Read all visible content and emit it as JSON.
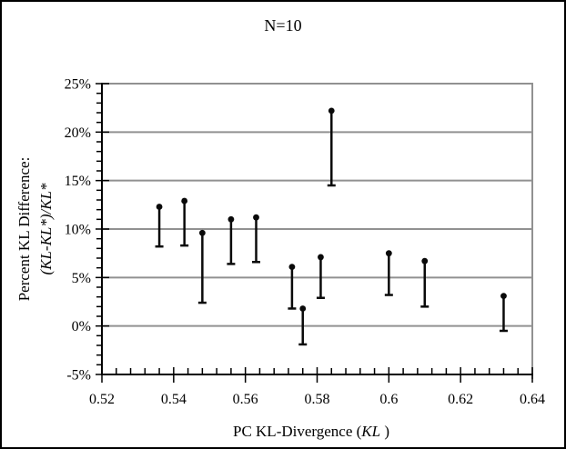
{
  "chart_data": {
    "type": "scatter",
    "title": "N=10",
    "xlabel_prefix": "PC KL-Divergence (",
    "xlabel_italic": "KL",
    "xlabel_suffix": " )",
    "ylabel_line1": "Percent KL Difference:",
    "ylabel_line2": "(KL-KL*)/KL*",
    "xlim": [
      0.52,
      0.64
    ],
    "ylim": [
      -5,
      25
    ],
    "x_major_step": 0.02,
    "x_minor_step": 0.004,
    "y_major_step": 5,
    "y_minor_step": 1,
    "xtick_labels": [
      "0.52",
      "0.54",
      "0.56",
      "0.58",
      "0.6",
      "0.62",
      "0.64"
    ],
    "ytick_labels": [
      "25%",
      "20%",
      "15%",
      "10%",
      "5%",
      "0%",
      "-5%"
    ],
    "grid": "horizontal-major",
    "legend": "none",
    "marker": "filled-circle",
    "error_bars": "minus-only-with-cap",
    "series": [
      {
        "points": [
          {
            "x": 0.536,
            "y": 12.3,
            "y_low": 8.2
          },
          {
            "x": 0.543,
            "y": 12.9,
            "y_low": 8.3
          },
          {
            "x": 0.548,
            "y": 9.6,
            "y_low": 2.4
          },
          {
            "x": 0.556,
            "y": 11.0,
            "y_low": 6.4
          },
          {
            "x": 0.563,
            "y": 11.2,
            "y_low": 6.6
          },
          {
            "x": 0.573,
            "y": 6.1,
            "y_low": 1.8
          },
          {
            "x": 0.576,
            "y": 1.8,
            "y_low": -1.9
          },
          {
            "x": 0.581,
            "y": 7.1,
            "y_low": 2.9
          },
          {
            "x": 0.584,
            "y": 22.2,
            "y_low": 14.5
          },
          {
            "x": 0.6,
            "y": 7.5,
            "y_low": 3.2
          },
          {
            "x": 0.61,
            "y": 6.7,
            "y_low": 2.0
          },
          {
            "x": 0.632,
            "y": 3.1,
            "y_low": -0.5
          }
        ]
      }
    ],
    "colors": {
      "gridline": "#919191",
      "plot_border": "#919191",
      "axis": "#000000",
      "marker": "#0a0a0a",
      "background": "#ffffff",
      "frame_border": "#000000"
    }
  }
}
